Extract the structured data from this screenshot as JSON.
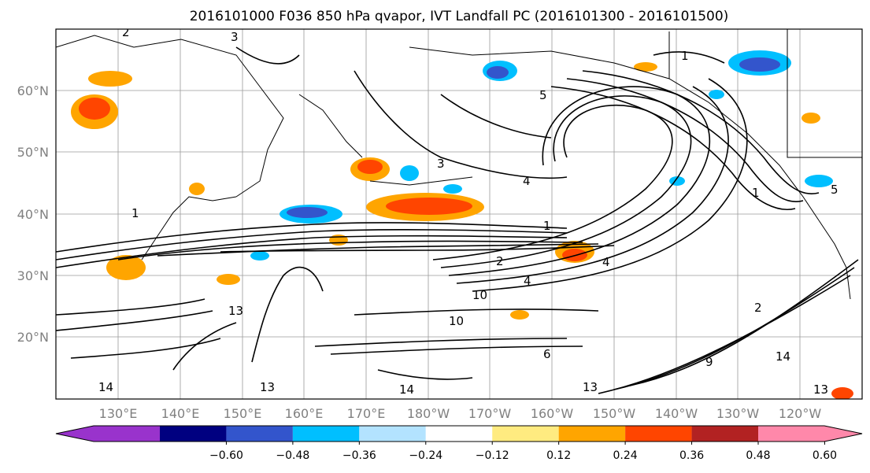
{
  "title": "2016101000 F036 850 hPa qvapor, IVT Landfall PC (2016101300 - 2016101500)",
  "lat_labels": [
    "60°N",
    "50°N",
    "40°N",
    "30°N",
    "20°N"
  ],
  "lon_labels": [
    "130°E",
    "140°E",
    "150°E",
    "160°E",
    "170°E",
    "180°W",
    "170°W",
    "160°W",
    "150°W",
    "140°W",
    "130°W",
    "120°W"
  ],
  "colorbar": {
    "colors": [
      "#9933cc",
      "#000080",
      "#3355cc",
      "#00bfff",
      "#b3e3ff",
      "#ffffff",
      "#ffeb80",
      "#ffa500",
      "#ff4500",
      "#b22222",
      "#ff88aa"
    ],
    "tick_labels": [
      "−0.60",
      "−0.48",
      "−0.36",
      "−0.24",
      "−0.12",
      "0.12",
      "0.24",
      "0.36",
      "0.48",
      "0.60"
    ]
  },
  "contour_labels": [
    "2",
    "3",
    "1",
    "5",
    "4",
    "3",
    "1",
    "1",
    "5",
    "2",
    "4",
    "4",
    "1",
    "13",
    "14",
    "14",
    "13",
    "14",
    "9",
    "13",
    "2",
    "10",
    "10",
    "6",
    "13"
  ],
  "colors": {
    "positive_orange": "#ffa500",
    "positive_red": "#ff4500",
    "negative_cyan": "#00bfff",
    "negative_blue": "#3355cc"
  }
}
